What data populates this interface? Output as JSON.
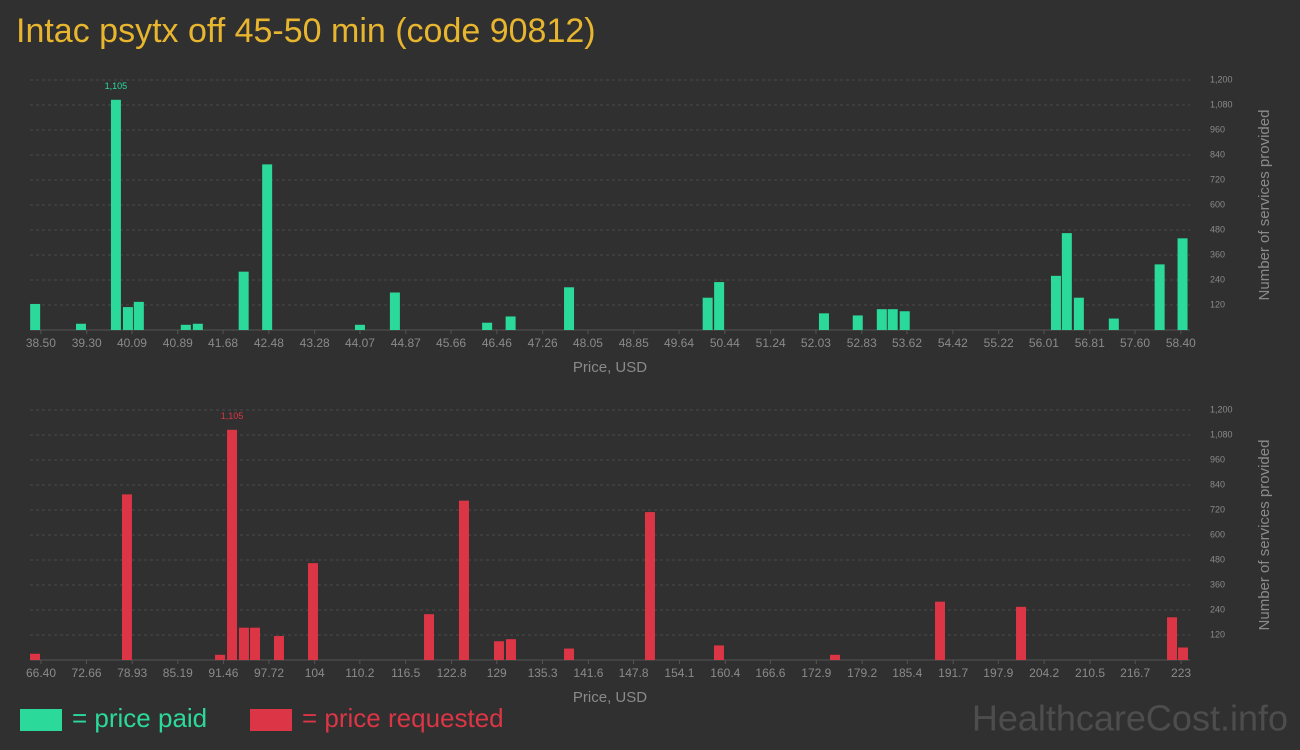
{
  "title": "Intac psytx off 45-50 min (code 90812)",
  "watermark": "HealthcareCost.info",
  "chart_data": [
    {
      "type": "bar",
      "xlabel": "Price, USD",
      "ylabel": "Number of services provided",
      "grid": true,
      "xlim": [
        38.31,
        58.56
      ],
      "ylim": [
        0,
        1200
      ],
      "yticks": [
        120,
        240,
        360,
        480,
        600,
        720,
        840,
        960,
        {
          "value": 1080,
          "label": "1,080"
        },
        {
          "value": 1200,
          "label": "1,200"
        }
      ],
      "xticks": [
        {
          "value": 38.5,
          "label": "38.50"
        },
        {
          "value": 39.3,
          "label": "39.30"
        },
        {
          "value": 40.09,
          "label": "40.09"
        },
        {
          "value": 40.89,
          "label": "40.89"
        },
        {
          "value": 41.68,
          "label": "41.68"
        },
        {
          "value": 42.48,
          "label": "42.48"
        },
        {
          "value": 43.28,
          "label": "43.28"
        },
        {
          "value": 44.07,
          "label": "44.07"
        },
        {
          "value": 44.87,
          "label": "44.87"
        },
        {
          "value": 45.66,
          "label": "45.66"
        },
        {
          "value": 46.46,
          "label": "46.46"
        },
        {
          "value": 47.26,
          "label": "47.26"
        },
        {
          "value": 48.05,
          "label": "48.05"
        },
        {
          "value": 48.85,
          "label": "48.85"
        },
        {
          "value": 49.64,
          "label": "49.64"
        },
        {
          "value": 50.44,
          "label": "50.44"
        },
        {
          "value": 51.24,
          "label": "51.24"
        },
        {
          "value": 52.03,
          "label": "52.03"
        },
        {
          "value": 52.83,
          "label": "52.83"
        },
        {
          "value": 53.62,
          "label": "53.62"
        },
        {
          "value": 54.42,
          "label": "54.42"
        },
        {
          "value": 55.22,
          "label": "55.22"
        },
        {
          "value": 56.01,
          "label": "56.01"
        },
        {
          "value": 56.81,
          "label": "56.81"
        },
        {
          "value": 57.6,
          "label": "57.60"
        },
        {
          "value": 58.4,
          "label": "58.40"
        }
      ],
      "series": [
        {
          "name": "= price paid",
          "color": "#2bd99a",
          "x": [
            38.4,
            39.2,
            39.81,
            40.02,
            40.21,
            41.03,
            41.24,
            42.04,
            42.45,
            44.07,
            44.68,
            46.29,
            46.7,
            47.72,
            50.14,
            50.34,
            52.17,
            52.76,
            53.18,
            53.37,
            53.58,
            56.22,
            56.41,
            56.62,
            57.23,
            58.03,
            58.43
          ],
          "values": [
            125,
            30,
            1105,
            110,
            135,
            25,
            30,
            280,
            795,
            25,
            180,
            35,
            65,
            205,
            155,
            230,
            80,
            70,
            100,
            100,
            90,
            260,
            465,
            155,
            55,
            315,
            440
          ],
          "value_labels": [
            null,
            null,
            "1,105",
            null,
            null,
            null,
            null,
            null,
            null,
            null,
            null,
            null,
            null,
            null,
            null,
            null,
            null,
            null,
            null,
            null,
            null,
            null,
            null,
            null,
            null,
            null,
            null
          ]
        }
      ]
    },
    {
      "type": "bar",
      "xlabel": "Price, USD",
      "ylabel": "Number of services provided",
      "grid": true,
      "xlim": [
        64.89,
        224.23
      ],
      "ylim": [
        0,
        1200
      ],
      "yticks": [
        120,
        240,
        360,
        480,
        600,
        720,
        840,
        960,
        {
          "value": 1080,
          "label": "1,080"
        },
        {
          "value": 1200,
          "label": "1,200"
        }
      ],
      "xticks": [
        {
          "value": 66.4,
          "label": "66.40"
        },
        72.66,
        78.93,
        85.19,
        91.46,
        97.72,
        104,
        110.2,
        116.5,
        122.8,
        129,
        135.3,
        141.6,
        147.8,
        154.1,
        160.4,
        166.6,
        172.9,
        179.2,
        185.4,
        191.7,
        197.9,
        204.2,
        210.5,
        216.7,
        223
      ],
      "series": [
        {
          "name": "= price requested",
          "color": "#dc3545",
          "x": [
            65.58,
            78.21,
            90.99,
            92.64,
            94.28,
            95.8,
            99.09,
            103.76,
            119.7,
            124.5,
            129.31,
            130.96,
            138.93,
            150.05,
            159.53,
            175.47,
            189.89,
            201.02,
            221.76,
            223.27
          ],
          "values": [
            30,
            795,
            25,
            1105,
            155,
            155,
            115,
            465,
            220,
            765,
            90,
            100,
            55,
            710,
            70,
            25,
            280,
            255,
            205,
            60
          ],
          "value_labels": [
            null,
            null,
            null,
            "1,105",
            null,
            null,
            null,
            null,
            null,
            null,
            null,
            null,
            null,
            null,
            null,
            null,
            null,
            null,
            null,
            null
          ]
        }
      ]
    }
  ]
}
